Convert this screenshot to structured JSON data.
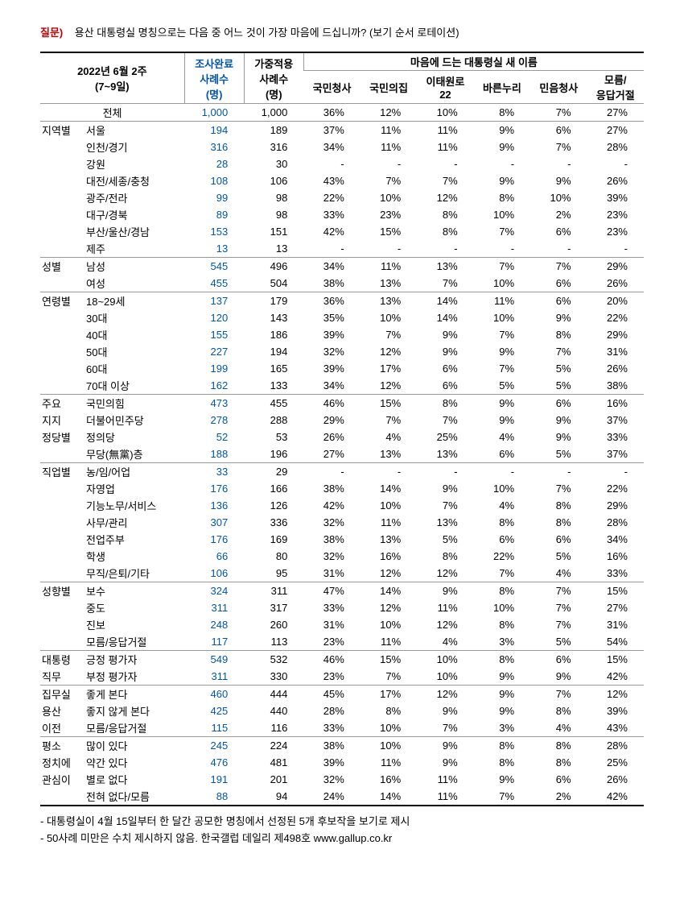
{
  "question": {
    "label": "질문)",
    "text": "용산 대통령실 명칭으로는 다음 중 어느 것이 가장 마음에 드십니까? (보기 순서 로테이션)"
  },
  "header": {
    "period": "2022년 6월 2주\n(7~9일)",
    "col1": "조사완료\n사례수\n(명)",
    "col2": "가중적용\n사례수\n(명)",
    "group": "마음에 드는 대통령실 새 이름",
    "opts": [
      "국민청사",
      "국민의집",
      "이태원로\n22",
      "바른누리",
      "민음청사",
      "모름/\n응답거절"
    ]
  },
  "sections": [
    {
      "cat": "",
      "rows": [
        {
          "sep": "top",
          "lbl": "전체",
          "n1": "1,000",
          "n2": "1,000",
          "v": [
            "36%",
            "12%",
            "10%",
            "8%",
            "7%",
            "27%"
          ]
        }
      ]
    },
    {
      "cat": "지역별",
      "rows": [
        {
          "lbl": "서울",
          "n1": "194",
          "n2": "189",
          "v": [
            "37%",
            "11%",
            "11%",
            "9%",
            "6%",
            "27%"
          ]
        },
        {
          "lbl": "인천/경기",
          "n1": "316",
          "n2": "316",
          "v": [
            "34%",
            "11%",
            "11%",
            "9%",
            "7%",
            "28%"
          ]
        },
        {
          "lbl": "강원",
          "n1": "28",
          "n2": "30",
          "v": [
            "-",
            "-",
            "-",
            "-",
            "-",
            "-"
          ]
        },
        {
          "lbl": "대전/세종/충청",
          "n1": "108",
          "n2": "106",
          "v": [
            "43%",
            "7%",
            "7%",
            "9%",
            "9%",
            "26%"
          ]
        },
        {
          "lbl": "광주/전라",
          "n1": "99",
          "n2": "98",
          "v": [
            "22%",
            "10%",
            "12%",
            "8%",
            "10%",
            "39%"
          ]
        },
        {
          "lbl": "대구/경북",
          "n1": "89",
          "n2": "98",
          "v": [
            "33%",
            "23%",
            "8%",
            "10%",
            "2%",
            "23%"
          ]
        },
        {
          "lbl": "부산/울산/경남",
          "n1": "153",
          "n2": "151",
          "v": [
            "42%",
            "15%",
            "8%",
            "7%",
            "6%",
            "23%"
          ]
        },
        {
          "sep": "bot",
          "lbl": "제주",
          "n1": "13",
          "n2": "13",
          "v": [
            "-",
            "-",
            "-",
            "-",
            "-",
            "-"
          ]
        }
      ]
    },
    {
      "cat": "성별",
      "rows": [
        {
          "lbl": "남성",
          "n1": "545",
          "n2": "496",
          "v": [
            "34%",
            "11%",
            "13%",
            "7%",
            "7%",
            "29%"
          ]
        },
        {
          "sep": "bot",
          "lbl": "여성",
          "n1": "455",
          "n2": "504",
          "v": [
            "38%",
            "13%",
            "7%",
            "10%",
            "6%",
            "26%"
          ]
        }
      ]
    },
    {
      "cat": "연령별",
      "rows": [
        {
          "lbl": "18~29세",
          "n1": "137",
          "n2": "179",
          "v": [
            "36%",
            "13%",
            "14%",
            "11%",
            "6%",
            "20%"
          ]
        },
        {
          "lbl": "30대",
          "n1": "120",
          "n2": "143",
          "v": [
            "35%",
            "10%",
            "14%",
            "10%",
            "9%",
            "22%"
          ]
        },
        {
          "lbl": "40대",
          "n1": "155",
          "n2": "186",
          "v": [
            "39%",
            "7%",
            "9%",
            "7%",
            "8%",
            "29%"
          ]
        },
        {
          "lbl": "50대",
          "n1": "227",
          "n2": "194",
          "v": [
            "32%",
            "12%",
            "9%",
            "9%",
            "7%",
            "31%"
          ]
        },
        {
          "lbl": "60대",
          "n1": "199",
          "n2": "165",
          "v": [
            "39%",
            "17%",
            "6%",
            "7%",
            "5%",
            "26%"
          ]
        },
        {
          "sep": "bot",
          "lbl": "70대 이상",
          "n1": "162",
          "n2": "133",
          "v": [
            "34%",
            "12%",
            "6%",
            "5%",
            "5%",
            "38%"
          ]
        }
      ]
    },
    {
      "cat": "주요 지지 정당별",
      "catlines": [
        "주요",
        "지지",
        "정당별"
      ],
      "rows": [
        {
          "lbl": "국민의힘",
          "n1": "473",
          "n2": "455",
          "v": [
            "46%",
            "15%",
            "8%",
            "9%",
            "6%",
            "16%"
          ]
        },
        {
          "lbl": "더불어민주당",
          "n1": "278",
          "n2": "288",
          "v": [
            "29%",
            "7%",
            "7%",
            "9%",
            "9%",
            "37%"
          ]
        },
        {
          "lbl": "정의당",
          "n1": "52",
          "n2": "53",
          "v": [
            "26%",
            "4%",
            "25%",
            "4%",
            "9%",
            "33%"
          ]
        },
        {
          "sep": "bot",
          "lbl": "무당(無黨)층",
          "n1": "188",
          "n2": "196",
          "v": [
            "27%",
            "13%",
            "13%",
            "6%",
            "5%",
            "37%"
          ]
        }
      ]
    },
    {
      "cat": "직업별",
      "rows": [
        {
          "lbl": "농/임/어업",
          "n1": "33",
          "n2": "29",
          "v": [
            "-",
            "-",
            "-",
            "-",
            "-",
            "-"
          ]
        },
        {
          "lbl": "자영업",
          "n1": "176",
          "n2": "166",
          "v": [
            "38%",
            "14%",
            "9%",
            "10%",
            "7%",
            "22%"
          ]
        },
        {
          "lbl": "기능노무/서비스",
          "n1": "136",
          "n2": "126",
          "v": [
            "42%",
            "10%",
            "7%",
            "4%",
            "8%",
            "29%"
          ]
        },
        {
          "lbl": "사무/관리",
          "n1": "307",
          "n2": "336",
          "v": [
            "32%",
            "11%",
            "13%",
            "8%",
            "8%",
            "28%"
          ]
        },
        {
          "lbl": "전업주부",
          "n1": "176",
          "n2": "169",
          "v": [
            "38%",
            "13%",
            "5%",
            "6%",
            "6%",
            "34%"
          ]
        },
        {
          "lbl": "학생",
          "n1": "66",
          "n2": "80",
          "v": [
            "32%",
            "16%",
            "8%",
            "22%",
            "5%",
            "16%"
          ]
        },
        {
          "sep": "bot",
          "lbl": "무직/은퇴/기타",
          "n1": "106",
          "n2": "95",
          "v": [
            "31%",
            "12%",
            "12%",
            "7%",
            "4%",
            "33%"
          ]
        }
      ]
    },
    {
      "cat": "성향별",
      "rows": [
        {
          "lbl": "보수",
          "n1": "324",
          "n2": "311",
          "v": [
            "47%",
            "14%",
            "9%",
            "8%",
            "7%",
            "15%"
          ]
        },
        {
          "lbl": "중도",
          "n1": "311",
          "n2": "317",
          "v": [
            "33%",
            "12%",
            "11%",
            "10%",
            "7%",
            "27%"
          ]
        },
        {
          "lbl": "진보",
          "n1": "248",
          "n2": "260",
          "v": [
            "31%",
            "10%",
            "12%",
            "8%",
            "7%",
            "31%"
          ]
        },
        {
          "sep": "bot",
          "lbl": "모름/응답거절",
          "n1": "117",
          "n2": "113",
          "v": [
            "23%",
            "11%",
            "4%",
            "3%",
            "5%",
            "54%"
          ]
        }
      ]
    },
    {
      "cat": "대통령 직무",
      "catlines": [
        "대통령",
        "직무"
      ],
      "rows": [
        {
          "lbl": "긍정 평가자",
          "n1": "549",
          "n2": "532",
          "v": [
            "46%",
            "15%",
            "10%",
            "8%",
            "6%",
            "15%"
          ]
        },
        {
          "sep": "bot",
          "lbl": "부정 평가자",
          "n1": "311",
          "n2": "330",
          "v": [
            "23%",
            "7%",
            "10%",
            "9%",
            "9%",
            "42%"
          ]
        }
      ]
    },
    {
      "cat": "집무실 용산 이전",
      "catlines": [
        "집무실",
        "용산",
        "이전"
      ],
      "rows": [
        {
          "lbl": "좋게 본다",
          "n1": "460",
          "n2": "444",
          "v": [
            "45%",
            "17%",
            "12%",
            "9%",
            "7%",
            "12%"
          ]
        },
        {
          "lbl": "좋지 않게 본다",
          "n1": "425",
          "n2": "440",
          "v": [
            "28%",
            "8%",
            "9%",
            "9%",
            "8%",
            "39%"
          ]
        },
        {
          "sep": "bot",
          "lbl": "모름/응답거절",
          "n1": "115",
          "n2": "116",
          "v": [
            "33%",
            "10%",
            "7%",
            "3%",
            "4%",
            "43%"
          ]
        }
      ]
    },
    {
      "cat": "평소 정치에 관심이",
      "catlines": [
        "평소",
        "정치에",
        "관심이"
      ],
      "rows": [
        {
          "lbl": "많이 있다",
          "n1": "245",
          "n2": "224",
          "v": [
            "38%",
            "10%",
            "9%",
            "8%",
            "8%",
            "28%"
          ]
        },
        {
          "lbl": "약간 있다",
          "n1": "476",
          "n2": "481",
          "v": [
            "39%",
            "11%",
            "9%",
            "8%",
            "8%",
            "25%"
          ]
        },
        {
          "lbl": "별로 없다",
          "n1": "191",
          "n2": "201",
          "v": [
            "32%",
            "16%",
            "11%",
            "9%",
            "6%",
            "26%"
          ]
        },
        {
          "sep": "end",
          "lbl": "전혀 없다/모름",
          "n1": "88",
          "n2": "94",
          "v": [
            "24%",
            "14%",
            "11%",
            "7%",
            "2%",
            "42%"
          ]
        }
      ]
    }
  ],
  "notes": [
    "- 대통령실이 4월 15일부터 한 달간 공모한 명칭에서 선정된 5개 후보작을 보기로 제시",
    "- 50사례 미만은 수치 제시하지 않음. 한국갤럽 데일리 제498호 www.gallup.co.kr"
  ]
}
